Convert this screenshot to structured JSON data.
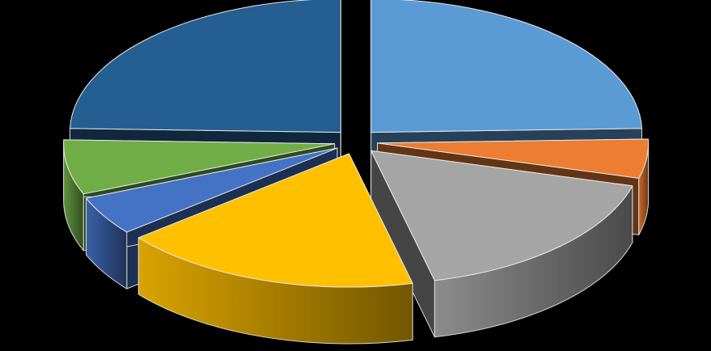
{
  "chart_data": {
    "type": "pie",
    "variant": "3d-exploded",
    "title": "",
    "legend": "none",
    "data_labels": "none",
    "slices": [
      {
        "value": 26,
        "color": "#5b9bd5"
      },
      {
        "value": 5,
        "color": "#ed7d31"
      },
      {
        "value": 18,
        "color": "#a5a5a5"
      },
      {
        "value": 19,
        "color": "#ffc000"
      },
      {
        "value": 5,
        "color": "#4472c4"
      },
      {
        "value": 7,
        "color": "#70ad47"
      },
      {
        "value": 26,
        "color": "#255e91"
      }
    ]
  }
}
